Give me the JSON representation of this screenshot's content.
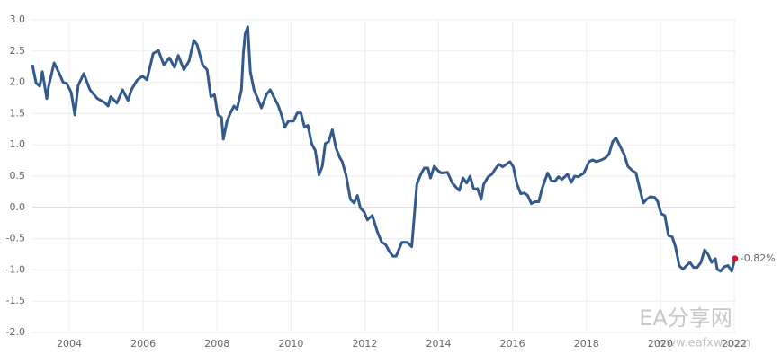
{
  "chart_data": {
    "type": "line",
    "x": [
      2003.0,
      2003.1,
      2003.2,
      2003.27,
      2003.39,
      2003.44,
      2003.59,
      2003.73,
      2003.83,
      2003.93,
      2004.05,
      2004.15,
      2004.24,
      2004.39,
      2004.56,
      2004.76,
      2004.95,
      2005.05,
      2005.12,
      2005.29,
      2005.44,
      2005.59,
      2005.68,
      2005.83,
      2005.98,
      2006.1,
      2006.27,
      2006.41,
      2006.56,
      2006.71,
      2006.85,
      2006.95,
      2007.1,
      2007.24,
      2007.37,
      2007.46,
      2007.61,
      2007.73,
      2007.83,
      2007.93,
      2008.02,
      2008.12,
      2008.17,
      2008.27,
      2008.37,
      2008.46,
      2008.54,
      2008.66,
      2008.71,
      2008.76,
      2008.83,
      2008.9,
      2009.0,
      2009.1,
      2009.2,
      2009.34,
      2009.44,
      2009.56,
      2009.66,
      2009.76,
      2009.83,
      2009.93,
      2010.07,
      2010.17,
      2010.27,
      2010.37,
      2010.46,
      2010.56,
      2010.66,
      2010.76,
      2010.85,
      2010.93,
      2011.02,
      2011.12,
      2011.22,
      2011.32,
      2011.39,
      2011.49,
      2011.61,
      2011.71,
      2011.8,
      2011.88,
      2011.98,
      2012.07,
      2012.2,
      2012.34,
      2012.46,
      2012.56,
      2012.66,
      2012.76,
      2012.85,
      2013.0,
      2013.15,
      2013.27,
      2013.34,
      2013.41,
      2013.51,
      2013.61,
      2013.71,
      2013.78,
      2013.88,
      2013.98,
      2014.07,
      2014.24,
      2014.37,
      2014.46,
      2014.56,
      2014.66,
      2014.76,
      2014.85,
      2014.95,
      2015.05,
      2015.15,
      2015.22,
      2015.34,
      2015.44,
      2015.54,
      2015.63,
      2015.73,
      2015.83,
      2015.93,
      2016.02,
      2016.12,
      2016.22,
      2016.32,
      2016.41,
      2016.51,
      2016.61,
      2016.71,
      2016.8,
      2016.95,
      2017.05,
      2017.15,
      2017.24,
      2017.34,
      2017.49,
      2017.59,
      2017.68,
      2017.78,
      2017.93,
      2018.07,
      2018.17,
      2018.27,
      2018.41,
      2018.51,
      2018.61,
      2018.71,
      2018.8,
      2018.9,
      2019.02,
      2019.12,
      2019.24,
      2019.34,
      2019.44,
      2019.54,
      2019.63,
      2019.73,
      2019.85,
      2019.93,
      2020.02,
      2020.12,
      2020.22,
      2020.32,
      2020.41,
      2020.51,
      2020.61,
      2020.71,
      2020.8,
      2020.9,
      2021.0,
      2021.1,
      2021.2,
      2021.29,
      2021.39,
      2021.49,
      2021.54,
      2021.63,
      2021.73,
      2021.83,
      2021.93,
      2022.02
    ],
    "series": [
      {
        "color": "#335a8c",
        "values": [
          2.28,
          1.99,
          1.94,
          2.17,
          1.74,
          1.94,
          2.31,
          2.14,
          2.0,
          1.98,
          1.84,
          1.48,
          1.95,
          2.14,
          1.88,
          1.74,
          1.68,
          1.62,
          1.77,
          1.67,
          1.88,
          1.71,
          1.88,
          2.03,
          2.1,
          2.04,
          2.46,
          2.51,
          2.28,
          2.39,
          2.24,
          2.43,
          2.2,
          2.34,
          2.67,
          2.6,
          2.28,
          2.2,
          1.77,
          1.8,
          1.48,
          1.44,
          1.09,
          1.38,
          1.52,
          1.62,
          1.57,
          1.88,
          2.46,
          2.77,
          2.89,
          2.17,
          1.88,
          1.74,
          1.59,
          1.81,
          1.88,
          1.74,
          1.62,
          1.45,
          1.28,
          1.38,
          1.38,
          1.51,
          1.51,
          1.28,
          1.31,
          1.02,
          0.91,
          0.52,
          0.66,
          1.02,
          1.05,
          1.24,
          0.95,
          0.8,
          0.73,
          0.52,
          0.13,
          0.07,
          0.19,
          -0.01,
          -0.07,
          -0.2,
          -0.13,
          -0.39,
          -0.56,
          -0.59,
          -0.7,
          -0.78,
          -0.78,
          -0.56,
          -0.56,
          -0.63,
          -0.13,
          0.37,
          0.52,
          0.63,
          0.63,
          0.47,
          0.66,
          0.59,
          0.55,
          0.56,
          0.39,
          0.33,
          0.27,
          0.47,
          0.39,
          0.5,
          0.29,
          0.3,
          0.13,
          0.37,
          0.49,
          0.53,
          0.62,
          0.69,
          0.65,
          0.69,
          0.73,
          0.65,
          0.37,
          0.22,
          0.23,
          0.19,
          0.06,
          0.09,
          0.09,
          0.3,
          0.55,
          0.43,
          0.42,
          0.49,
          0.45,
          0.53,
          0.4,
          0.5,
          0.49,
          0.55,
          0.73,
          0.76,
          0.73,
          0.76,
          0.79,
          0.85,
          1.05,
          1.11,
          0.99,
          0.85,
          0.66,
          0.59,
          0.55,
          0.3,
          0.07,
          0.13,
          0.17,
          0.16,
          0.09,
          -0.1,
          -0.13,
          -0.45,
          -0.47,
          -0.63,
          -0.93,
          -0.99,
          -0.93,
          -0.88,
          -0.96,
          -0.96,
          -0.88,
          -0.68,
          -0.75,
          -0.88,
          -0.82,
          -0.99,
          -1.02,
          -0.95,
          -0.93,
          -1.02,
          -0.82
        ]
      }
    ],
    "last_label": {
      "value": -0.82,
      "label": "-0.82%",
      "color": "#e0102b"
    },
    "xlim": [
      2003.0,
      2022.05
    ],
    "xticks": [
      2004,
      2006,
      2008,
      2010,
      2012,
      2014,
      2016,
      2018,
      2020,
      2022
    ],
    "ylim": [
      -2.0,
      3.0
    ],
    "yticks": [
      {
        "value": -2,
        "label": "-2.0"
      },
      -1.5,
      {
        "value": -1,
        "label": "-1.0"
      },
      -0.5,
      {
        "value": 0,
        "label": "0.0"
      },
      0.5,
      {
        "value": 1,
        "label": "1.0"
      },
      1.5,
      {
        "value": 2,
        "label": "2.0"
      },
      2.5,
      {
        "value": 3,
        "label": "3.0"
      }
    ],
    "grid": true,
    "watermark": [
      "EA分享网",
      "www.eafxw.com"
    ]
  }
}
